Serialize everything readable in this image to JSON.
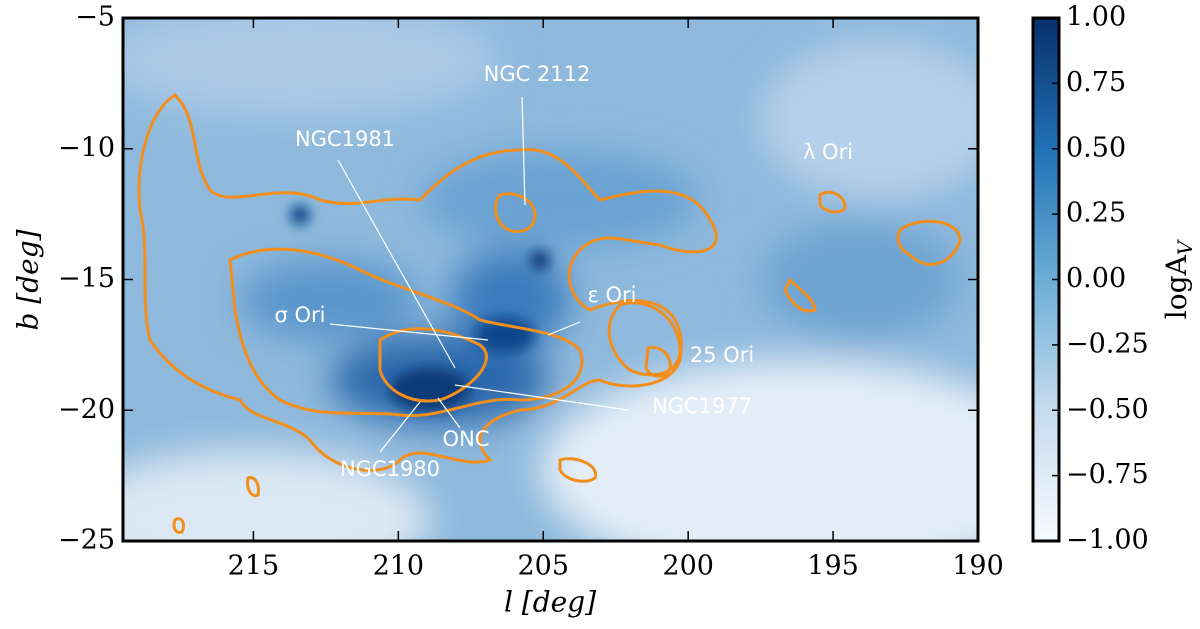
{
  "chart_data": {
    "type": "heatmap",
    "xlabel": "l [deg]",
    "ylabel": "b [deg]",
    "xlim": [
      219.5,
      190
    ],
    "xticks": [
      215,
      210,
      205,
      200,
      195,
      190
    ],
    "ylim": [
      -25,
      -5
    ],
    "yticks": [
      {
        "value": -5,
        "label": "−5"
      },
      {
        "value": -10,
        "label": "−10"
      },
      {
        "value": -15,
        "label": "−15"
      },
      {
        "value": -20,
        "label": "−20"
      },
      {
        "value": -25,
        "label": "−25"
      }
    ],
    "colormap": "Blues",
    "contour_color": "#f28e1c",
    "colorbar": {
      "label": {
        "text": "logA",
        "subscript": "V"
      },
      "lim": [
        -1,
        1
      ],
      "ticks": [
        {
          "value": 1,
          "label": "1.00"
        },
        {
          "value": 0.75,
          "label": "0.75"
        },
        {
          "value": 0.5,
          "label": "0.50"
        },
        {
          "value": 0.25,
          "label": "0.25"
        },
        {
          "value": 0,
          "label": "0.00"
        },
        {
          "value": -0.25,
          "label": "−0.25"
        },
        {
          "value": -0.5,
          "label": "−0.50"
        },
        {
          "value": -0.75,
          "label": "−0.75"
        },
        {
          "value": -1,
          "label": "−1.00"
        }
      ]
    },
    "annotations": [
      "NGC 2112",
      "NGC1981",
      "λ Ori",
      "σ Ori",
      "ε Ori",
      "25 Ori",
      "NGC1977",
      "ONC",
      "NGC1980"
    ]
  }
}
